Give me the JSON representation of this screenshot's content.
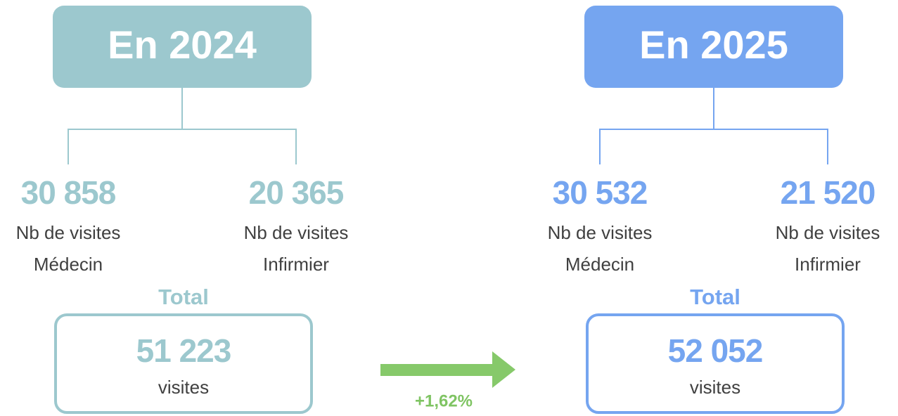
{
  "panels": [
    {
      "title": "En 2024",
      "color": "#9cc8ce",
      "items": [
        {
          "value": "30 858",
          "lines": [
            "Nb de visites",
            "Médecin"
          ]
        },
        {
          "value": "20 365",
          "lines": [
            "Nb de visites",
            "Infirmier"
          ]
        }
      ],
      "total_label": "Total",
      "total_value": "51 223",
      "total_unit": "visites"
    },
    {
      "title": "En 2025",
      "color": "#75a5f0",
      "items": [
        {
          "value": "30 532",
          "lines": [
            "Nb de visites",
            "Médecin"
          ]
        },
        {
          "value": "21 520",
          "lines": [
            "Nb de visites",
            "Infirmier"
          ]
        }
      ],
      "total_label": "Total",
      "total_value": "52 052",
      "total_unit": "visites"
    }
  ],
  "change": {
    "label": "+1,62%",
    "color": "#86c96a"
  }
}
